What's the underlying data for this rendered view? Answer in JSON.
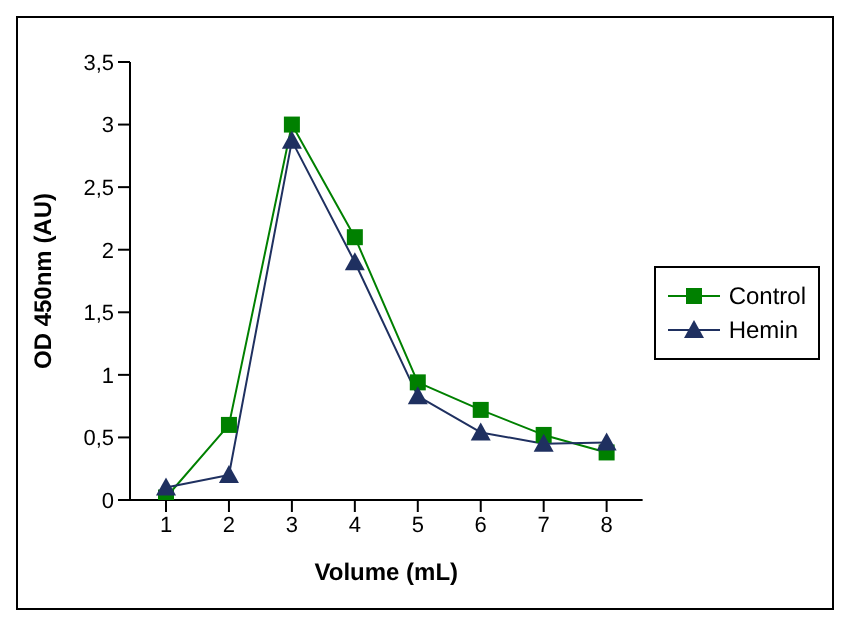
{
  "chart_data": {
    "type": "line",
    "xlabel": "Volume (mL)",
    "ylabel": "OD 450nm (AU)",
    "categories": [
      "1",
      "2",
      "3",
      "4",
      "5",
      "6",
      "7",
      "8"
    ],
    "series": [
      {
        "name": "Control",
        "color": "#008000",
        "marker": "square",
        "values": [
          0.02,
          0.6,
          3.0,
          2.1,
          0.94,
          0.72,
          0.52,
          0.38
        ]
      },
      {
        "name": "Hemin",
        "color": "#1f3060",
        "marker": "triangle",
        "values": [
          0.1,
          0.2,
          2.87,
          1.9,
          0.83,
          0.54,
          0.45,
          0.46
        ]
      }
    ],
    "ylim": [
      0,
      3.5
    ],
    "yticks": [
      0,
      {
        "value": 0.5,
        "label": "0,5"
      },
      1,
      {
        "value": 1.5,
        "label": "1,5"
      },
      2,
      {
        "value": 2.5,
        "label": "2,5"
      },
      3,
      {
        "value": 3.5,
        "label": "3,5"
      }
    ],
    "grid": false,
    "legend": "right",
    "line_style": "solid"
  }
}
